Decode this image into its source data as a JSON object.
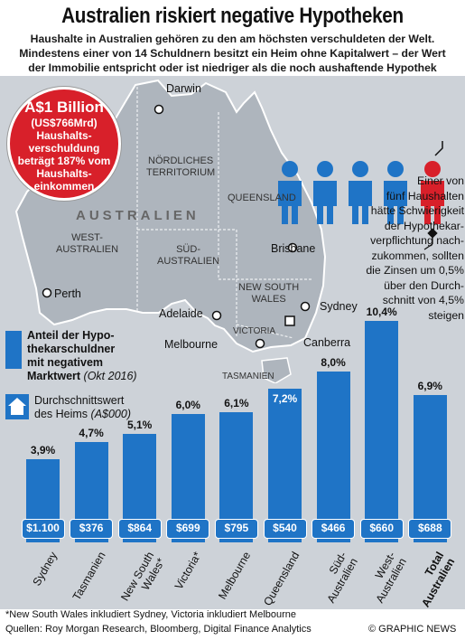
{
  "title": "Australien riskiert negative Hypotheken",
  "intro": [
    "Haushalte in Australien gehören zu den am höchsten verschuldeten der Welt.",
    "Mindestens einer von 14 Schuldnern besitzt ein Heim ohne Kapitalwert –  der Wert",
    "der Immobilie entspricht oder ist niedriger als die noch aushaftende Hypothek"
  ],
  "badge": {
    "main": "A$1 Billion",
    "lines": [
      "(US$766Mrd)",
      "Haushalts-",
      "verschuldung",
      "beträgt 187% vom",
      "Haushalts-",
      "einkommen"
    ]
  },
  "map": {
    "country": "AUSTRALIEN",
    "regions": {
      "nt": [
        "NÖRDLICHES",
        "TERRITORIUM"
      ],
      "qld": [
        "QUEENSLAND"
      ],
      "wa": [
        "WEST-",
        "AUSTRALIEN"
      ],
      "sa": [
        "SÜD-",
        "AUSTRALIEN"
      ],
      "nsw": [
        "NEW SOUTH",
        "WALES"
      ],
      "vic": [
        "VICTORIA"
      ],
      "tas": [
        "TASMANIEN"
      ]
    },
    "cities": {
      "darwin": "Darwin",
      "brisbane": "Brisbane",
      "perth": "Perth",
      "adelaide": "Adelaide",
      "sydney": "Sydney",
      "melbourne": "Melbourne",
      "canberra": "Canberra"
    }
  },
  "side_note": [
    "Einer von",
    "fünf Haushalten",
    "hätte Schwierigkeit",
    "der Hypothekar-",
    "verpflichtung nach-",
    "zukommen, sollten",
    "die Zinsen um 0,5%",
    "über den Durch-",
    "schnitt von 4,5%",
    "steigen"
  ],
  "legend": {
    "negative": [
      "Anteil der Hypo-",
      "thekarschuldner",
      "mit negativem"
    ],
    "negative_last": "Marktwert",
    "negative_date": "(Okt 2016)",
    "house": [
      "Durchschnittswert"
    ],
    "house_last": "des Heims",
    "house_unit": "(A$000)"
  },
  "colors": {
    "bar": "#1f74c6",
    "panel": "#cdd2d8",
    "badge": "#d8202a",
    "person_blue": "#1f74c6",
    "person_red": "#d8202a"
  },
  "chart_data": {
    "type": "bar",
    "categories": [
      "Sydney",
      "Tasmanien",
      "New South Wales*",
      "Victoria*",
      "Melbourne",
      "Queensland",
      "Süd-Australien",
      "West-Australien",
      "Total Australien"
    ],
    "category_lines": [
      [
        "Sydney"
      ],
      [
        "Tasmanien"
      ],
      [
        "New South",
        "Wales*"
      ],
      [
        "Victoria*"
      ],
      [
        "Melbourne"
      ],
      [
        "Queensland"
      ],
      [
        "Süd-",
        "Australien"
      ],
      [
        "West-",
        "Australien"
      ],
      [
        "Total",
        "Australien"
      ]
    ],
    "series": [
      {
        "name": "Anteil der Hypothekarschuldner mit negativem Marktwert",
        "values": [
          3.9,
          4.7,
          5.1,
          6.0,
          6.1,
          7.2,
          8.0,
          10.4,
          6.9
        ]
      },
      {
        "name": "Durchschnittswert des Heims (A$000)",
        "values": [
          1100,
          376,
          864,
          699,
          795,
          540,
          466,
          660,
          688
        ]
      }
    ],
    "value_labels": [
      "3,9%",
      "4,7%",
      "5,1%",
      "6,0%",
      "6,1%",
      "7,2%",
      "8,0%",
      "10,4%",
      "6,9%"
    ],
    "home_labels": [
      "$1.100",
      "$376",
      "$864",
      "$699",
      "$795",
      "$540",
      "$466",
      "$660",
      "$688"
    ],
    "bold_category_index": 8,
    "unit": "%"
  },
  "footnote": "*New South Wales inkludiert Sydney, Victoria inkludiert Melbourne",
  "sources": "Quellen: Roy Morgan Research, Bloomberg, Digital Finance Analytics",
  "credit": "© GRAPHIC NEWS"
}
